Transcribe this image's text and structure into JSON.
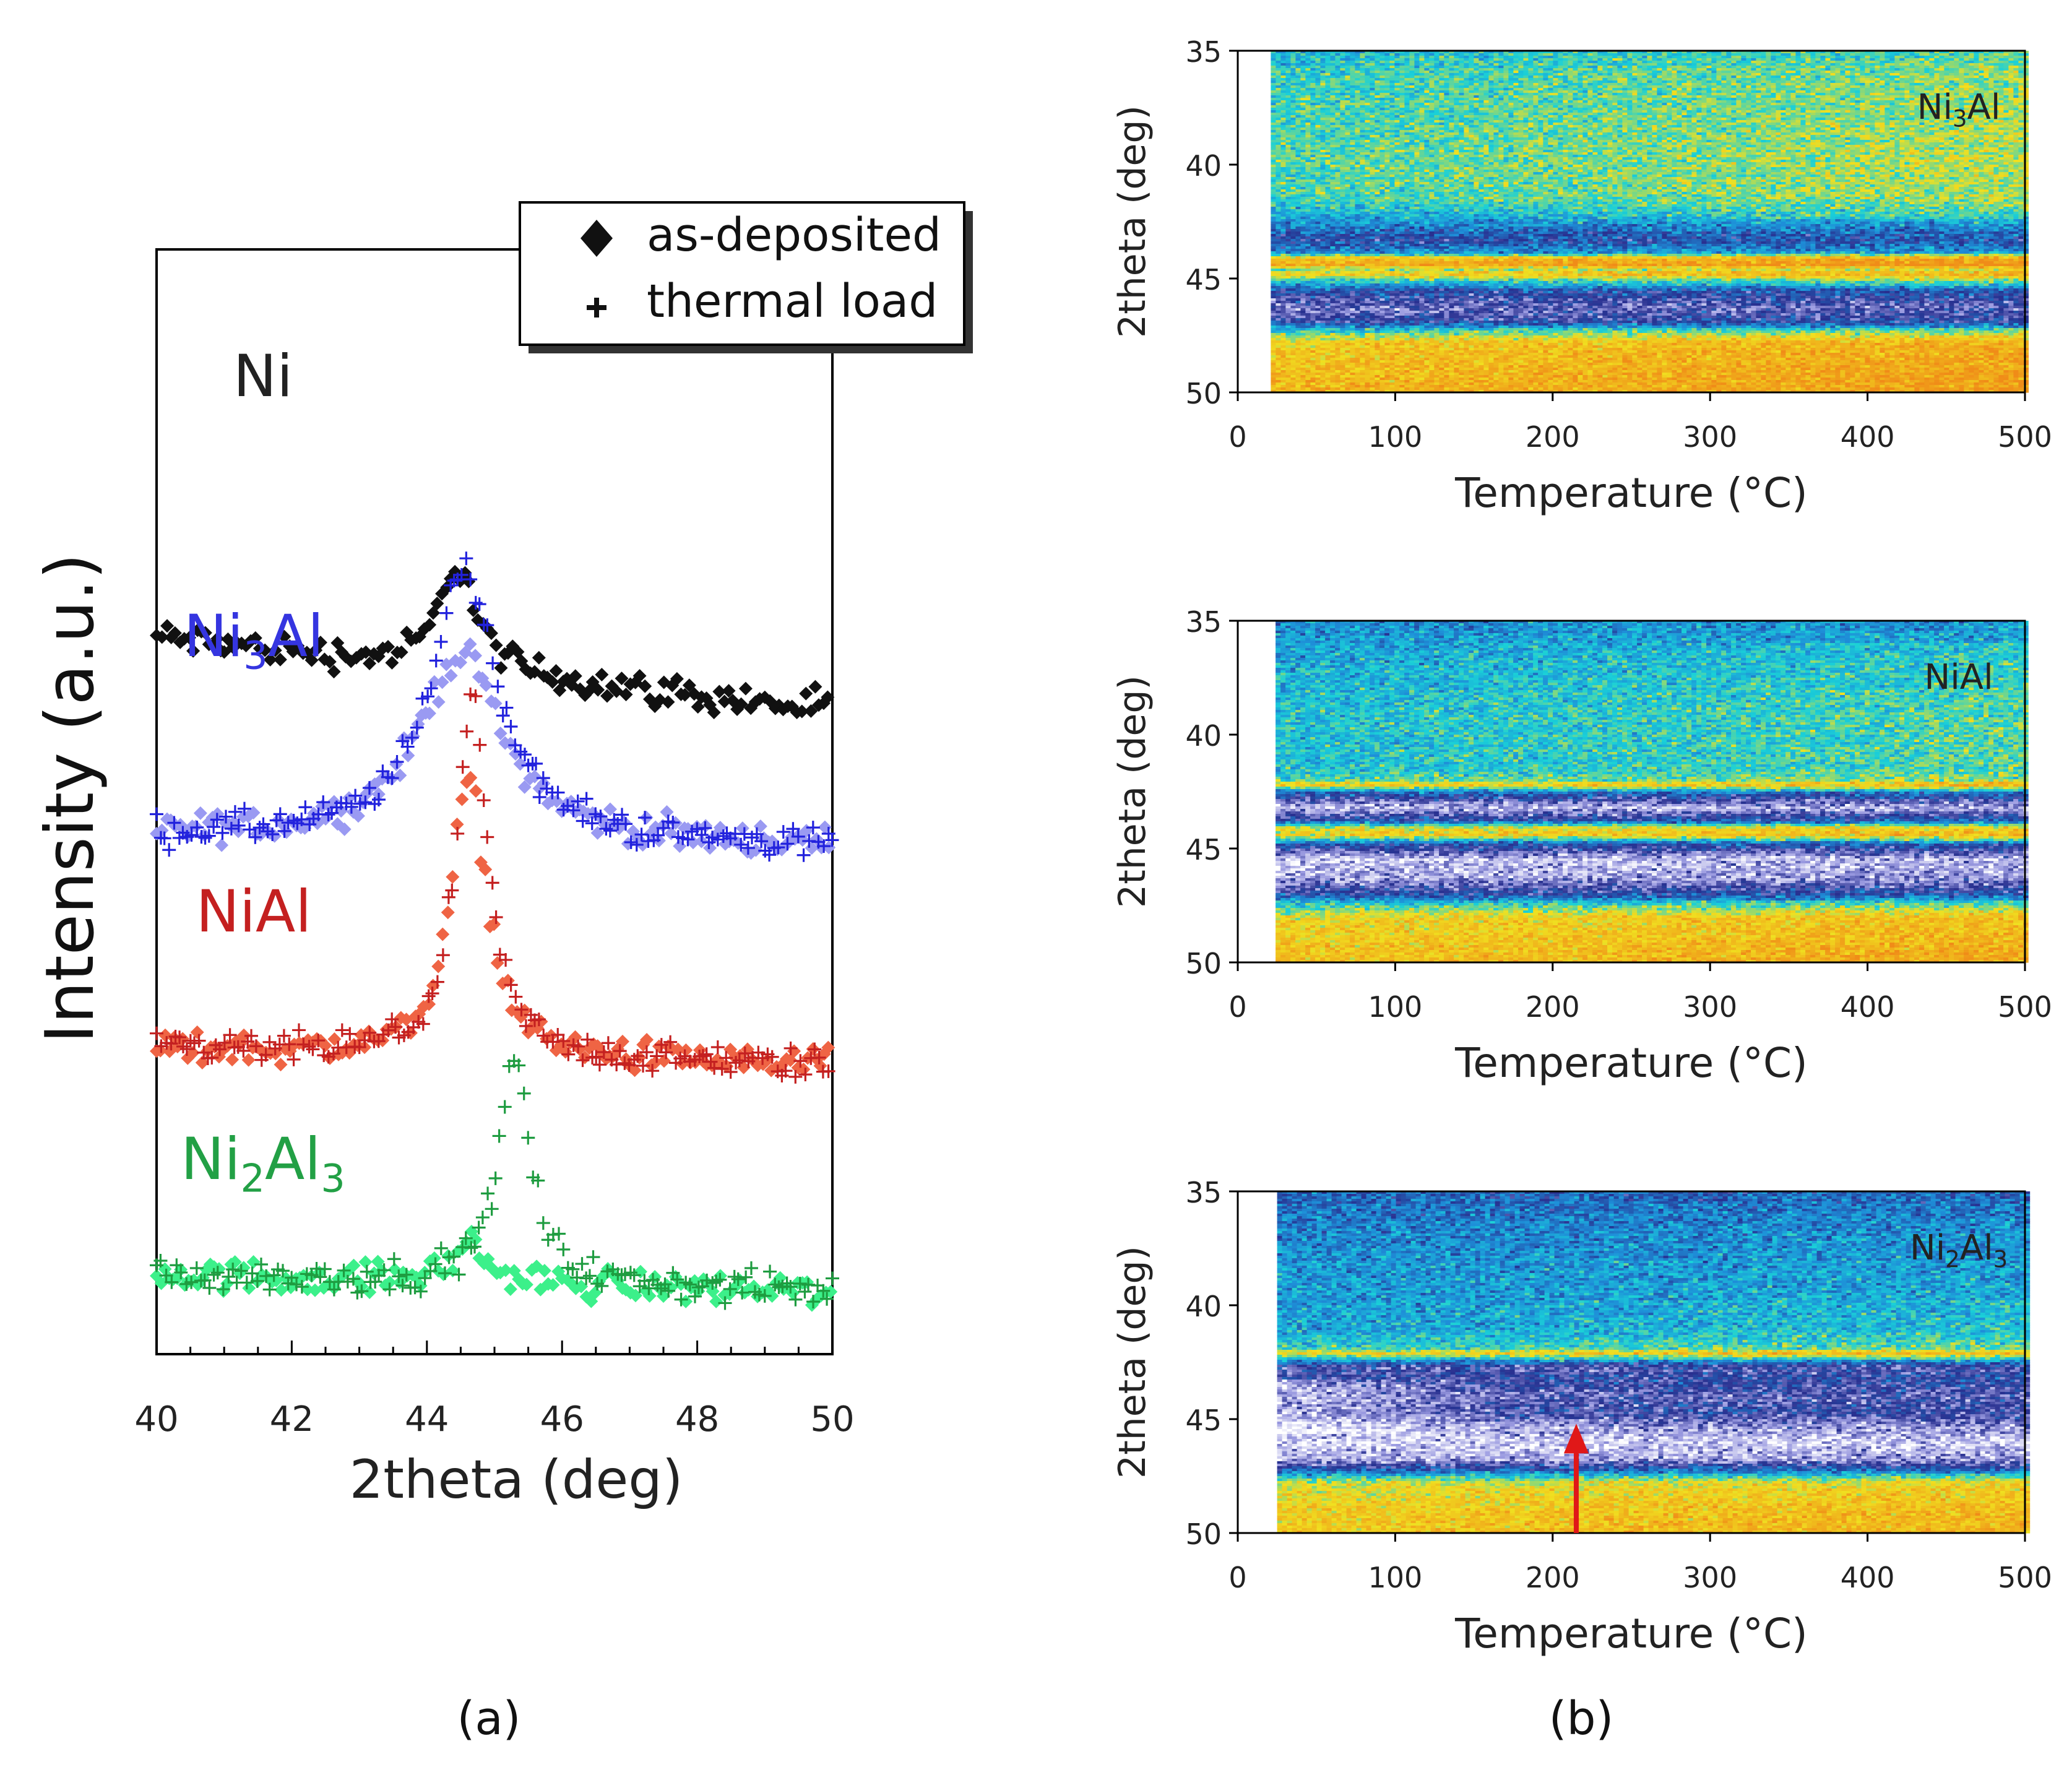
{
  "panel_labels": {
    "a": "(a)",
    "b": "(b)"
  },
  "chart_data": [
    {
      "panel": "a",
      "type": "scatter",
      "xlabel": "2theta (deg)",
      "ylabel": "Intensity (a.u.)",
      "xlim": [
        40,
        50
      ],
      "xticks": [
        "40",
        "42",
        "44",
        "46",
        "48",
        "50"
      ],
      "legend": {
        "placement": "top-right",
        "entries": [
          {
            "marker": "diamond",
            "label": "as-deposited"
          },
          {
            "marker": "plus",
            "label": "thermal load"
          }
        ]
      },
      "traces": [
        {
          "sample": "Ni",
          "label_parts": [
            [
              "Ni",
              ""
            ]
          ],
          "color_label": "#222222",
          "color_diamond": "#111111",
          "color_plus": "",
          "baseline_start": 0.93,
          "baseline_end": 0.8,
          "diamond": {
            "center": 44.45,
            "width": 0.32,
            "height": 0.19
          },
          "plus": null
        },
        {
          "sample": "Ni3Al",
          "label_parts": [
            [
              "Ni",
              ""
            ],
            [
              "3",
              "sub"
            ],
            [
              "Al",
              ""
            ]
          ],
          "color_label": "#3535e0",
          "color_diamond": "#9a9af2",
          "color_plus": "#2222dd",
          "baseline_start": 0.58,
          "baseline_end": 0.56,
          "diamond": {
            "center": 44.5,
            "width": 0.75,
            "height": 0.33
          },
          "plus": {
            "center": 44.55,
            "width": 0.6,
            "height": 0.48
          }
        },
        {
          "sample": "NiAl",
          "label_parts": [
            [
              "NiAl",
              ""
            ]
          ],
          "color_label": "#c42020",
          "color_diamond": "#ef6444",
          "color_plus": "#c42020",
          "baseline_start": 0.2,
          "baseline_end": 0.17,
          "diamond": {
            "center": 44.62,
            "width": 0.33,
            "height": 0.49
          },
          "plus": {
            "center": 44.67,
            "width": 0.28,
            "height": 0.63
          }
        },
        {
          "sample": "Ni2Al3",
          "label_parts": [
            [
              "Ni",
              ""
            ],
            [
              "2",
              "sub"
            ],
            [
              "Al",
              ""
            ],
            [
              "3",
              "sub"
            ]
          ],
          "color_label": "#22a045",
          "color_diamond": "#3cf08a",
          "color_plus": "#1e9c40",
          "baseline_start": -0.2,
          "baseline_end": -0.23,
          "diamond": {
            "center": 44.6,
            "width": 0.3,
            "height": 0.07
          },
          "plus": {
            "center": 45.3,
            "width": 0.28,
            "height": 0.4
          }
        }
      ]
    },
    {
      "panel": "b",
      "type": "heatmap",
      "xlabel": "Temperature (°C)",
      "ylabel": "2theta (deg)",
      "xlim": [
        0,
        500
      ],
      "ylim": [
        35,
        50
      ],
      "xticks": [
        "0",
        "100",
        "200",
        "300",
        "400",
        "500"
      ],
      "yticks": [
        "35",
        "40",
        "45",
        "50"
      ],
      "colormap": [
        "#ffffff",
        "#9a9ae0",
        "#283090",
        "#1e8ed8",
        "#1ad0d8",
        "#f0e020",
        "#f08c18"
      ],
      "maps": [
        {
          "sample": "Ni3Al",
          "label_parts": [
            [
              "Ni",
              ""
            ],
            [
              "3",
              "sub"
            ],
            [
              "Al",
              ""
            ]
          ],
          "t_start": 21,
          "profile": [
            [
              35,
              0.5
            ],
            [
              36,
              0.56
            ],
            [
              38,
              0.58
            ],
            [
              40,
              0.6
            ],
            [
              41.5,
              0.58
            ],
            [
              42.5,
              0.44
            ],
            [
              43.3,
              0.28
            ],
            [
              43.9,
              0.44
            ],
            [
              44.1,
              0.82
            ],
            [
              44.4,
              0.9
            ],
            [
              44.6,
              0.64
            ],
            [
              44.8,
              0.82
            ],
            [
              45.1,
              0.54
            ],
            [
              45.6,
              0.28
            ],
            [
              46.3,
              0.18
            ],
            [
              46.9,
              0.26
            ],
            [
              47.3,
              0.55
            ],
            [
              47.8,
              0.8
            ],
            [
              49,
              0.84
            ],
            [
              50,
              0.86
            ]
          ],
          "warm_gain": 0.1,
          "annotation": null
        },
        {
          "sample": "NiAl",
          "label_parts": [
            [
              "NiAl",
              ""
            ]
          ],
          "t_start": 24,
          "profile": [
            [
              35,
              0.42
            ],
            [
              37,
              0.48
            ],
            [
              39,
              0.52
            ],
            [
              41.5,
              0.52
            ],
            [
              42.0,
              0.58
            ],
            [
              42.2,
              0.82
            ],
            [
              42.5,
              0.38
            ],
            [
              43.2,
              0.08
            ],
            [
              43.8,
              0.32
            ],
            [
              44.1,
              0.72
            ],
            [
              44.4,
              0.78
            ],
            [
              44.8,
              0.32
            ],
            [
              45.5,
              0.07
            ],
            [
              46.3,
              0.12
            ],
            [
              47.0,
              0.28
            ],
            [
              47.4,
              0.52
            ],
            [
              48,
              0.76
            ],
            [
              49.5,
              0.82
            ],
            [
              50,
              0.84
            ]
          ],
          "warm_gain": 0.08,
          "annotation": null
        },
        {
          "sample": "Ni2Al3",
          "label_parts": [
            [
              "Ni",
              ""
            ],
            [
              "2",
              "sub"
            ],
            [
              "Al",
              ""
            ],
            [
              "3",
              "sub"
            ]
          ],
          "t_start": 25,
          "profile": [
            [
              35,
              0.34
            ],
            [
              36.5,
              0.4
            ],
            [
              38.5,
              0.44
            ],
            [
              41.0,
              0.46
            ],
            [
              41.9,
              0.56
            ],
            [
              42.1,
              0.8
            ],
            [
              42.4,
              0.46
            ],
            [
              42.7,
              0.22
            ],
            [
              43.3,
              0.26
            ],
            [
              44.0,
              0.2
            ],
            [
              44.7,
              0.24
            ],
            [
              45.3,
              0.14
            ],
            [
              46.0,
              0.05
            ],
            [
              46.8,
              0.12
            ],
            [
              47.3,
              0.38
            ],
            [
              47.8,
              0.72
            ],
            [
              49,
              0.8
            ],
            [
              50,
              0.82
            ]
          ],
          "warm_gain": 0.06,
          "annotation": {
            "type": "arrow",
            "color": "#e01818",
            "x": 215,
            "y_from": 50,
            "y_to": 45.2
          }
        }
      ]
    }
  ]
}
